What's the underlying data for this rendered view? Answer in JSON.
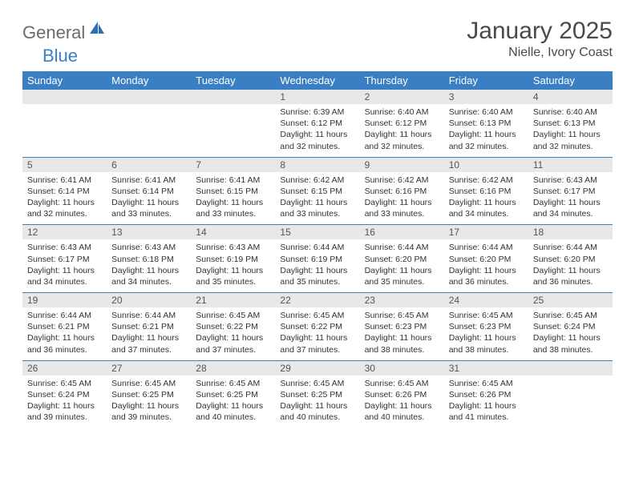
{
  "brand": {
    "general": "General",
    "blue": "Blue"
  },
  "title": {
    "month": "January 2025",
    "location": "Nielle, Ivory Coast"
  },
  "colors": {
    "header_bg": "#3a7fc4",
    "header_fg": "#ffffff",
    "daynum_bg": "#e8e8e8",
    "border": "#3a7fc4",
    "logo_gray": "#6b6b6b",
    "logo_blue": "#3a7fc4",
    "title_color": "#4a4a4a"
  },
  "day_names": [
    "Sunday",
    "Monday",
    "Tuesday",
    "Wednesday",
    "Thursday",
    "Friday",
    "Saturday"
  ],
  "weeks": [
    [
      {
        "blank": true
      },
      {
        "blank": true
      },
      {
        "blank": true
      },
      {
        "n": "1",
        "sr": "6:39 AM",
        "ss": "6:12 PM",
        "dl": "11 hours and 32 minutes."
      },
      {
        "n": "2",
        "sr": "6:40 AM",
        "ss": "6:12 PM",
        "dl": "11 hours and 32 minutes."
      },
      {
        "n": "3",
        "sr": "6:40 AM",
        "ss": "6:13 PM",
        "dl": "11 hours and 32 minutes."
      },
      {
        "n": "4",
        "sr": "6:40 AM",
        "ss": "6:13 PM",
        "dl": "11 hours and 32 minutes."
      }
    ],
    [
      {
        "n": "5",
        "sr": "6:41 AM",
        "ss": "6:14 PM",
        "dl": "11 hours and 32 minutes."
      },
      {
        "n": "6",
        "sr": "6:41 AM",
        "ss": "6:14 PM",
        "dl": "11 hours and 33 minutes."
      },
      {
        "n": "7",
        "sr": "6:41 AM",
        "ss": "6:15 PM",
        "dl": "11 hours and 33 minutes."
      },
      {
        "n": "8",
        "sr": "6:42 AM",
        "ss": "6:15 PM",
        "dl": "11 hours and 33 minutes."
      },
      {
        "n": "9",
        "sr": "6:42 AM",
        "ss": "6:16 PM",
        "dl": "11 hours and 33 minutes."
      },
      {
        "n": "10",
        "sr": "6:42 AM",
        "ss": "6:16 PM",
        "dl": "11 hours and 34 minutes."
      },
      {
        "n": "11",
        "sr": "6:43 AM",
        "ss": "6:17 PM",
        "dl": "11 hours and 34 minutes."
      }
    ],
    [
      {
        "n": "12",
        "sr": "6:43 AM",
        "ss": "6:17 PM",
        "dl": "11 hours and 34 minutes."
      },
      {
        "n": "13",
        "sr": "6:43 AM",
        "ss": "6:18 PM",
        "dl": "11 hours and 34 minutes."
      },
      {
        "n": "14",
        "sr": "6:43 AM",
        "ss": "6:19 PM",
        "dl": "11 hours and 35 minutes."
      },
      {
        "n": "15",
        "sr": "6:44 AM",
        "ss": "6:19 PM",
        "dl": "11 hours and 35 minutes."
      },
      {
        "n": "16",
        "sr": "6:44 AM",
        "ss": "6:20 PM",
        "dl": "11 hours and 35 minutes."
      },
      {
        "n": "17",
        "sr": "6:44 AM",
        "ss": "6:20 PM",
        "dl": "11 hours and 36 minutes."
      },
      {
        "n": "18",
        "sr": "6:44 AM",
        "ss": "6:20 PM",
        "dl": "11 hours and 36 minutes."
      }
    ],
    [
      {
        "n": "19",
        "sr": "6:44 AM",
        "ss": "6:21 PM",
        "dl": "11 hours and 36 minutes."
      },
      {
        "n": "20",
        "sr": "6:44 AM",
        "ss": "6:21 PM",
        "dl": "11 hours and 37 minutes."
      },
      {
        "n": "21",
        "sr": "6:45 AM",
        "ss": "6:22 PM",
        "dl": "11 hours and 37 minutes."
      },
      {
        "n": "22",
        "sr": "6:45 AM",
        "ss": "6:22 PM",
        "dl": "11 hours and 37 minutes."
      },
      {
        "n": "23",
        "sr": "6:45 AM",
        "ss": "6:23 PM",
        "dl": "11 hours and 38 minutes."
      },
      {
        "n": "24",
        "sr": "6:45 AM",
        "ss": "6:23 PM",
        "dl": "11 hours and 38 minutes."
      },
      {
        "n": "25",
        "sr": "6:45 AM",
        "ss": "6:24 PM",
        "dl": "11 hours and 38 minutes."
      }
    ],
    [
      {
        "n": "26",
        "sr": "6:45 AM",
        "ss": "6:24 PM",
        "dl": "11 hours and 39 minutes."
      },
      {
        "n": "27",
        "sr": "6:45 AM",
        "ss": "6:25 PM",
        "dl": "11 hours and 39 minutes."
      },
      {
        "n": "28",
        "sr": "6:45 AM",
        "ss": "6:25 PM",
        "dl": "11 hours and 40 minutes."
      },
      {
        "n": "29",
        "sr": "6:45 AM",
        "ss": "6:25 PM",
        "dl": "11 hours and 40 minutes."
      },
      {
        "n": "30",
        "sr": "6:45 AM",
        "ss": "6:26 PM",
        "dl": "11 hours and 40 minutes."
      },
      {
        "n": "31",
        "sr": "6:45 AM",
        "ss": "6:26 PM",
        "dl": "11 hours and 41 minutes."
      },
      {
        "blank": true
      }
    ]
  ],
  "labels": {
    "sunrise": "Sunrise:",
    "sunset": "Sunset:",
    "daylight": "Daylight:"
  }
}
